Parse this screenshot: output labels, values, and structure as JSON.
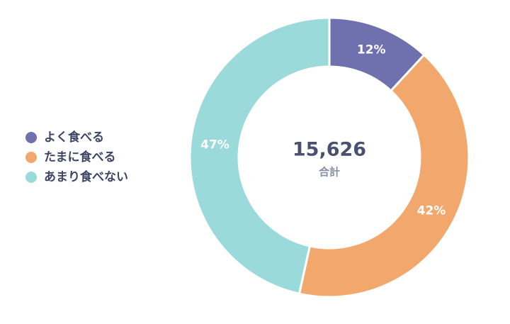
{
  "chart_data": {
    "type": "donut",
    "categories": [
      "よく食べる",
      "たまに食べる",
      "あまり食べない"
    ],
    "values": [
      12,
      42,
      47
    ],
    "value_labels": [
      "12%",
      "42%",
      "47%"
    ],
    "colors": [
      "#6f70ae",
      "#f2a86c",
      "#9adada"
    ],
    "total": {
      "value": 15626,
      "label": "15,626"
    },
    "total_label": "合計",
    "legend": "left"
  }
}
